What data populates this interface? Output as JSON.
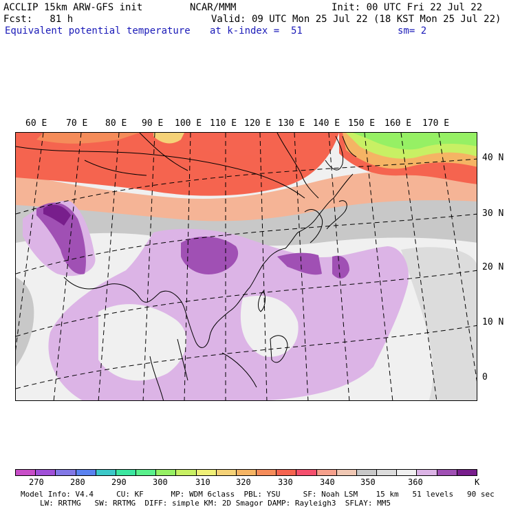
{
  "header": {
    "model": "ACCLIP 15km ARW-GFS init",
    "org": "NCAR/MMM",
    "init": "Init: 00 UTC Fri 22 Jul 22",
    "fcst": "Fcst:   81 h",
    "valid": "Valid: 09 UTC Mon 25 Jul 22 (18 KST Mon 25 Jul 22)",
    "field": "Equivalent potential temperature",
    "level": "at k-index =  51",
    "smoothing": "sm= 2"
  },
  "map": {
    "longitude_labels": [
      "60 E",
      "70 E",
      "80 E",
      "90 E",
      "100 E",
      "110 E",
      "120 E",
      "130 E",
      "140 E",
      "150 E",
      "160 E",
      "170 E"
    ],
    "latitude_labels": [
      "40 N",
      "30 N",
      "20 N",
      "10 N",
      "0"
    ]
  },
  "colorbar": {
    "colors": [
      "#c84ec8",
      "#a050d8",
      "#8278e6",
      "#5a82f0",
      "#3cc8c8",
      "#3ce6a0",
      "#5af08c",
      "#96f064",
      "#c8f064",
      "#f0f078",
      "#f5d278",
      "#f5b464",
      "#f58c5a",
      "#f56450",
      "#f5506e",
      "#f5a08c",
      "#f0c8b4",
      "#c8c8c8",
      "#dcdcdc",
      "#f0f0f0",
      "#dcb4e6",
      "#a050b4",
      "#781e8c"
    ],
    "tick_labels": [
      "270",
      "280",
      "290",
      "300",
      "310",
      "320",
      "330",
      "340",
      "350",
      "360",
      "K"
    ]
  },
  "model_info": {
    "line1": "Model Info: V4.4     CU: KF      MP: WDM 6class  PBL: YSU     SF: Noah LSM    15 km   51 levels   90 sec",
    "line2": "LW: RRTMG   SW: RRTMG  DIFF: simple KM: 2D Smagor DAMP: Rayleigh3  SFLAY: MM5"
  },
  "colors": {
    "background": "#ffffff",
    "header_blue": "#1a1ab8"
  }
}
